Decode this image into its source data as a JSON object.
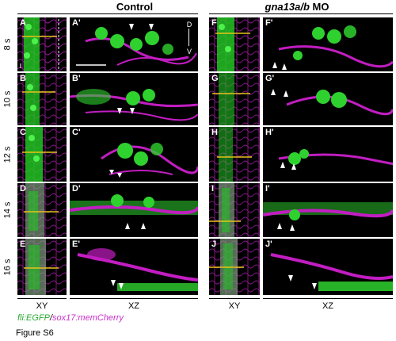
{
  "groups": [
    {
      "title": "Control"
    },
    {
      "title_italic": "gna13a/b",
      "title_rest": " MO"
    }
  ],
  "stages": [
    "8 s",
    "10 s",
    "12 s",
    "14 s",
    "16 s"
  ],
  "panels": {
    "control_xy": [
      "A",
      "B",
      "C",
      "D",
      "E"
    ],
    "control_xz": [
      "A'",
      "B'",
      "C'",
      "D'",
      "E'"
    ],
    "mo_xy": [
      "F",
      "G",
      "H",
      "I",
      "J"
    ],
    "mo_xz": [
      "F'",
      "G'",
      "H'",
      "I'",
      "J'"
    ]
  },
  "columns": {
    "xy": "XY",
    "xz": "XZ"
  },
  "axis": {
    "dorsal": "D",
    "ventral": "V"
  },
  "legend": {
    "green": "fli:EGFP",
    "sep": "/",
    "magenta": "sox17:memCherry"
  },
  "figure_label": "Figure S6",
  "colors": {
    "green": "#2fd12f",
    "magenta": "#c21dc2",
    "guide_line": "#e6c21a",
    "arrowhead": "#ffffff"
  }
}
